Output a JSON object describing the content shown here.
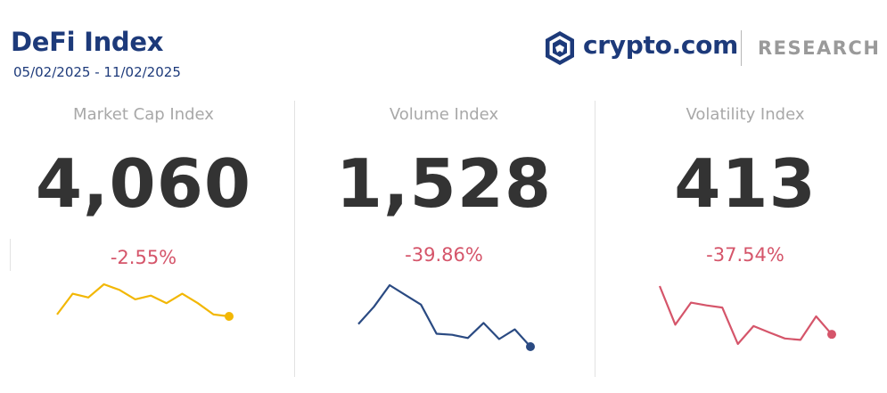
{
  "header": {
    "title": "DeFi Index",
    "date_range": "05/02/2025 - 11/02/2025"
  },
  "brand": {
    "name": "crypto.com",
    "section": "RESEARCH",
    "color": "#1d3a7a"
  },
  "chart_data": [
    {
      "type": "line",
      "title": "Market Cap Index",
      "value": "4,060",
      "change": "-2.55%",
      "color": "#f2b705",
      "values": [
        4210,
        4320,
        4300,
        4370,
        4340,
        4290,
        4310,
        4270,
        4320,
        4270,
        4210,
        4200
      ]
    },
    {
      "type": "line",
      "title": "Volume Index",
      "value": "1,528",
      "change": "-39.86%",
      "color": "#2a4a82",
      "values": [
        2360,
        2520,
        2720,
        2630,
        2540,
        2270,
        2260,
        2230,
        2370,
        2220,
        2310,
        2150
      ]
    },
    {
      "type": "line",
      "title": "Volatility Index",
      "value": "413",
      "change": "-37.54%",
      "color": "#d5556a",
      "values": [
        640,
        500,
        580,
        570,
        562,
        430,
        495,
        472,
        450,
        445,
        530,
        465
      ]
    }
  ]
}
